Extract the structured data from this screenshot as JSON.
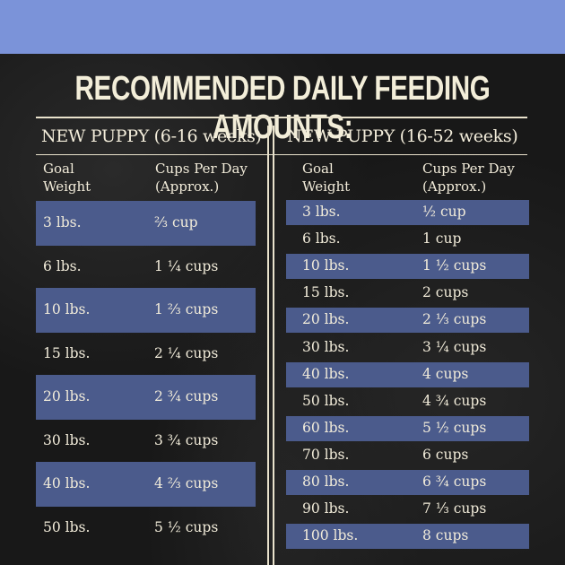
{
  "title": "RECOMMENDED DAILY FEEDING AMOUNTS:",
  "colors": {
    "top_band": "#7b93d9",
    "row_band": "#4b5b8c",
    "background": "#181818",
    "text": "#f2ecda"
  },
  "sections": [
    {
      "heading": "NEW PUPPY (6-16 weeks)",
      "col1": "Goal Weight",
      "col2": "Cups Per Day (Approx.)",
      "rows": [
        [
          "3 lbs.",
          "⅔ cup"
        ],
        [
          "6 lbs.",
          "1 ¼ cups"
        ],
        [
          "10 lbs.",
          "1 ⅔ cups"
        ],
        [
          "15 lbs.",
          "2 ¼ cups"
        ],
        [
          "20 lbs.",
          "2 ¾ cups"
        ],
        [
          "30 lbs.",
          "3 ¾ cups"
        ],
        [
          "40 lbs.",
          "4 ⅔ cups"
        ],
        [
          "50 lbs.",
          "5 ½ cups"
        ]
      ]
    },
    {
      "heading": "NEW PUPPY (16-52 weeks)",
      "col1": "Goal Weight",
      "col2": "Cups Per Day (Approx.)",
      "rows": [
        [
          "3 lbs.",
          "½ cup"
        ],
        [
          "6 lbs.",
          "1 cup"
        ],
        [
          "10 lbs.",
          "1 ½ cups"
        ],
        [
          "15 lbs.",
          "2 cups"
        ],
        [
          "20 lbs.",
          "2 ⅓ cups"
        ],
        [
          "30 lbs.",
          "3 ¼  cups"
        ],
        [
          "40 lbs.",
          "4 cups"
        ],
        [
          "50 lbs.",
          "4 ¾ cups"
        ],
        [
          "60 lbs.",
          "5 ½ cups"
        ],
        [
          "70 lbs.",
          "6 cups"
        ],
        [
          "80 lbs.",
          "6 ¾ cups"
        ],
        [
          "90 lbs.",
          "7 ⅓ cups"
        ],
        [
          "100 lbs.",
          "8 cups"
        ]
      ]
    }
  ]
}
